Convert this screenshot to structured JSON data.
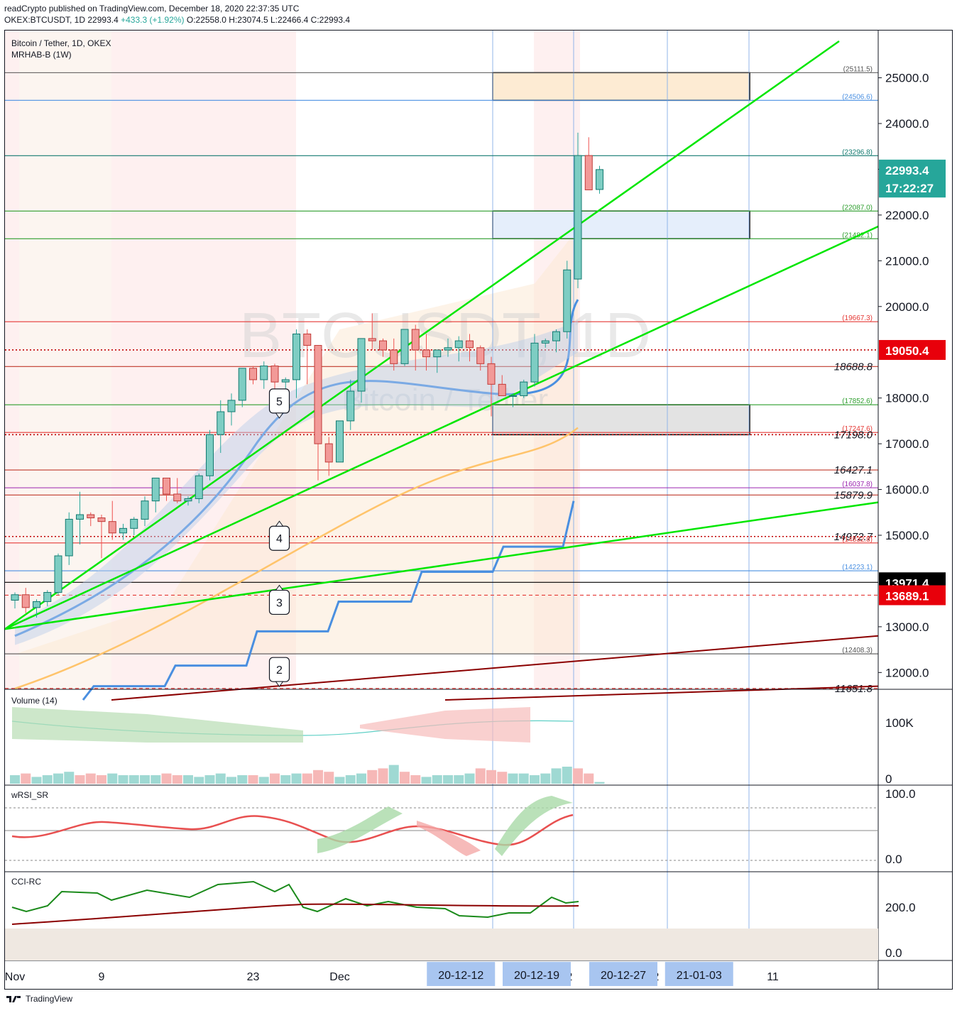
{
  "header": {
    "published_line": "readCrypto published on TradingView.com, December 18, 2020 22:37:35 UTC",
    "symbol": "OKEX:BTCUSDT, 1D",
    "last": "22993.4",
    "change": "+433.3 (+1.92%)",
    "ohlc": "O:22558.0 H:23074.5 L:22466.4 C:22993.4"
  },
  "panel_labels": {
    "title": "Bitcoin / Tether, 1D, OKEX",
    "indicator": "MRHAB-B (1W)",
    "watermark_main": "BTCUSDT, 1D",
    "watermark_sub": "Bitcoin / Tether",
    "volume": "Volume (14)",
    "wrsi": "wRSI_SR",
    "cci": "CCI-RC"
  },
  "footer": {
    "brand": "TradingView"
  },
  "colors": {
    "up": "#26a69a",
    "down": "#ef5350",
    "green_line": "#00e600",
    "dark_red_line": "#8b0000",
    "blue_ma": "#4a8fe0",
    "orange_ma": "#ffc46b",
    "purple": "#9c27b0"
  },
  "chart_data": {
    "type": "candlestick",
    "title": "Bitcoin / Tether, 1D, OKEX",
    "ylim": [
      11400,
      25800
    ],
    "price_axis_labels": [
      "25000.0",
      "24000.0",
      "23000.0",
      "22000.0",
      "21000.0",
      "20000.0",
      "18000.0",
      "17000.0",
      "16000.0",
      "15000.0",
      "13000.0",
      "12000.0"
    ],
    "price_tags": [
      {
        "label": "22993.4",
        "value": 22993.4,
        "bg": "#26a69a",
        "fg": "#ffffff"
      },
      {
        "label": "17:22:27",
        "value": 22600,
        "bg": "#26a69a",
        "fg": "#ffffff"
      },
      {
        "label": "19050.4",
        "value": 19050.4,
        "bg": "#e8000b",
        "fg": "#ffffff"
      },
      {
        "label": "13971.4",
        "value": 13971.4,
        "bg": "#000000",
        "fg": "#ffffff"
      },
      {
        "label": "13689.1",
        "value": 13689.1,
        "bg": "#e8000b",
        "fg": "#ffffff"
      }
    ],
    "levels": [
      {
        "value": 25111.5,
        "label": "(25111.5)",
        "color": "#555555",
        "style": "solid",
        "small": true
      },
      {
        "value": 24506.6,
        "label": "(24506.6)",
        "color": "#4a90e2",
        "style": "solid",
        "small": true
      },
      {
        "value": 23296.8,
        "label": "(23296.8)",
        "color": "#137a70",
        "style": "solid",
        "small": true
      },
      {
        "value": 22087.0,
        "label": "(22087.0)",
        "color": "#2e9e2e",
        "style": "solid",
        "small": true
      },
      {
        "value": 21482.1,
        "label": "(21482.1)",
        "color": "#2e9e2e",
        "style": "solid",
        "small": true
      },
      {
        "value": 19667.3,
        "label": "(19667.3)",
        "color": "#e53935",
        "style": "solid",
        "small": true
      },
      {
        "value": 19050.4,
        "label": "",
        "color": "#c00000",
        "style": "dotted",
        "small": true
      },
      {
        "value": 18688.8,
        "label": "18688.8",
        "color": "#c0392b",
        "style": "solid",
        "small": false
      },
      {
        "value": 17852.6,
        "label": "(17852.6)",
        "color": "#2e9e2e",
        "style": "solid",
        "small": true
      },
      {
        "value": 17247.6,
        "label": "(17247.6)",
        "color": "#e53935",
        "style": "solid",
        "small": true
      },
      {
        "value": 17198.0,
        "label": "17198.0",
        "color": "#c00000",
        "style": "dotted",
        "small": false
      },
      {
        "value": 16427.1,
        "label": "16427.1",
        "color": "#c0392b",
        "style": "solid",
        "small": false
      },
      {
        "value": 16037.8,
        "label": "(16037.8)",
        "color": "#9c27b0",
        "style": "solid",
        "small": true
      },
      {
        "value": 15879.9,
        "label": "15879.9",
        "color": "#c0392b",
        "style": "solid",
        "small": false
      },
      {
        "value": 14972.7,
        "label": "14972.7",
        "color": "#c00000",
        "style": "dotted",
        "small": false
      },
      {
        "value": 14832.8,
        "label": "(14832.8)",
        "color": "#e53935",
        "style": "solid",
        "small": true
      },
      {
        "value": 14223.1,
        "label": "(14223.1)",
        "color": "#4a90e2",
        "style": "solid",
        "small": true
      },
      {
        "value": 13971.4,
        "label": "",
        "color": "#000000",
        "style": "solid",
        "small": true
      },
      {
        "value": 13689.1,
        "label": "",
        "color": "#e53935",
        "style": "dashed",
        "small": true
      },
      {
        "value": 12408.3,
        "label": "(12408.3)",
        "color": "#555555",
        "style": "solid",
        "small": true
      },
      {
        "value": 11651.8,
        "label": "11651.8",
        "color": "#e53935",
        "style": "dashed",
        "small": false
      }
    ],
    "zones": [
      {
        "from": 24506.6,
        "to": 25111.5,
        "fill": "#fdebd3"
      },
      {
        "from": 21482.1,
        "to": 22087.0,
        "fill": "#e5eefb"
      },
      {
        "from": 17198.0,
        "to": 17852.6,
        "fill": "#e3e3e3"
      }
    ],
    "candles": [
      [
        13580,
        13750,
        13400,
        13700
      ],
      [
        13700,
        13850,
        13300,
        13420
      ],
      [
        13420,
        13600,
        13200,
        13550
      ],
      [
        13550,
        13800,
        13450,
        13750
      ],
      [
        13750,
        14600,
        13700,
        14550
      ],
      [
        14550,
        15500,
        14350,
        15350
      ],
      [
        15350,
        15950,
        14800,
        15450
      ],
      [
        15450,
        15500,
        15200,
        15380
      ],
      [
        15380,
        15450,
        14500,
        15300
      ],
      [
        15300,
        15750,
        14900,
        15050
      ],
      [
        15050,
        15250,
        14900,
        15150
      ],
      [
        15150,
        15400,
        15000,
        15350
      ],
      [
        15350,
        15850,
        15200,
        15750
      ],
      [
        15750,
        16150,
        15500,
        16250
      ],
      [
        16250,
        16200,
        15750,
        15900
      ],
      [
        15900,
        16250,
        15700,
        15750
      ],
      [
        15750,
        15850,
        15650,
        15800
      ],
      [
        15800,
        16350,
        15700,
        16300
      ],
      [
        16300,
        17300,
        16200,
        17200
      ],
      [
        17200,
        17950,
        16800,
        17700
      ],
      [
        17700,
        18100,
        17400,
        17950
      ],
      [
        17950,
        18600,
        17800,
        18650
      ],
      [
        18650,
        18700,
        18300,
        18400
      ],
      [
        18400,
        18800,
        18200,
        18700
      ],
      [
        18700,
        18750,
        18000,
        18350
      ],
      [
        18350,
        18450,
        17800,
        18400
      ],
      [
        18400,
        19500,
        18000,
        19400
      ],
      [
        19400,
        19500,
        18300,
        19150
      ],
      [
        19150,
        19100,
        16200,
        17000
      ],
      [
        17000,
        17150,
        16300,
        16600
      ],
      [
        16600,
        17400,
        16600,
        17500
      ],
      [
        17500,
        18400,
        17300,
        18150
      ],
      [
        18150,
        19300,
        17900,
        19300
      ],
      [
        19300,
        19850,
        19050,
        19250
      ],
      [
        19250,
        19300,
        18900,
        19050
      ],
      [
        19050,
        19300,
        18600,
        18750
      ],
      [
        18750,
        19500,
        18700,
        19500
      ],
      [
        19500,
        19600,
        18600,
        19050
      ],
      [
        19050,
        19400,
        18600,
        18900
      ],
      [
        18900,
        19050,
        18550,
        19050
      ],
      [
        19050,
        19300,
        18900,
        19100
      ],
      [
        19100,
        19350,
        18800,
        19250
      ],
      [
        19250,
        19400,
        18800,
        19100
      ],
      [
        19100,
        19150,
        18600,
        18750
      ],
      [
        18750,
        18900,
        17600,
        18300
      ],
      [
        18300,
        18500,
        18100,
        18050
      ],
      [
        18050,
        18100,
        17800,
        18050
      ],
      [
        18050,
        18400,
        18000,
        18350
      ],
      [
        18350,
        19400,
        18250,
        19200
      ],
      [
        19200,
        19300,
        19100,
        19250
      ],
      [
        19250,
        19500,
        19000,
        19450
      ],
      [
        19450,
        21000,
        19300,
        20800
      ],
      [
        20600,
        23800,
        20400,
        23300
      ],
      [
        23300,
        23700,
        22600,
        22550
      ],
      [
        22558,
        23074.5,
        22466.4,
        22993.4
      ]
    ],
    "date_labels": [
      {
        "label": "Nov",
        "i": 0
      },
      {
        "label": "9",
        "i": 8
      },
      {
        "label": "23",
        "i": 22
      },
      {
        "label": "Dec",
        "i": 30
      },
      {
        "label": "2",
        "i": 51.2
      },
      {
        "label": "2",
        "i": 59.2
      },
      {
        "label": "11",
        "i": 70
      }
    ],
    "date_badges": [
      {
        "label": "20-12-12",
        "i": 41
      },
      {
        "label": "20-12-19",
        "i": 48
      },
      {
        "label": "20-12-27",
        "i": 56
      },
      {
        "label": "21-01-03",
        "i": 63
      }
    ],
    "wave_labels": [
      {
        "label": "5",
        "i": 22,
        "value": 17950,
        "dir": "down"
      },
      {
        "label": "4",
        "i": 22,
        "value": 14950,
        "dir": "up"
      },
      {
        "label": "3",
        "i": 22,
        "value": 13550,
        "dir": "up"
      },
      {
        "label": "2",
        "i": 22,
        "value": 12080,
        "dir": "down"
      }
    ],
    "volume": {
      "label": "Volume (14)",
      "axis_labels": [
        "100K",
        "0"
      ],
      "bars": [
        5,
        6,
        4,
        5,
        6,
        7,
        5,
        6,
        5,
        6,
        5,
        5,
        5,
        5,
        6,
        5,
        5,
        4,
        5,
        6,
        4,
        5,
        5,
        4,
        6,
        5,
        6,
        6,
        8,
        7,
        4,
        5,
        6,
        8,
        9,
        11,
        7,
        5,
        4,
        5,
        5,
        5,
        6,
        9,
        8,
        7,
        6,
        6,
        5,
        6,
        9,
        10,
        9,
        6,
        1
      ],
      "bar_dirs": [
        1,
        0,
        1,
        1,
        1,
        1,
        0,
        0,
        0,
        1,
        1,
        1,
        1,
        1,
        0,
        0,
        1,
        1,
        1,
        1,
        1,
        1,
        0,
        1,
        0,
        1,
        1,
        0,
        0,
        0,
        1,
        1,
        1,
        0,
        0,
        1,
        0,
        0,
        1,
        1,
        1,
        1,
        1,
        0,
        0,
        0,
        1,
        1,
        1,
        1,
        1,
        1,
        0,
        0,
        1
      ]
    },
    "wrsi": {
      "label": "wRSI_SR",
      "axis_labels": [
        "100.0",
        "0.0"
      ]
    },
    "cci": {
      "label": "CCI-RC",
      "axis_labels": [
        "200.0",
        "0.0"
      ]
    }
  }
}
